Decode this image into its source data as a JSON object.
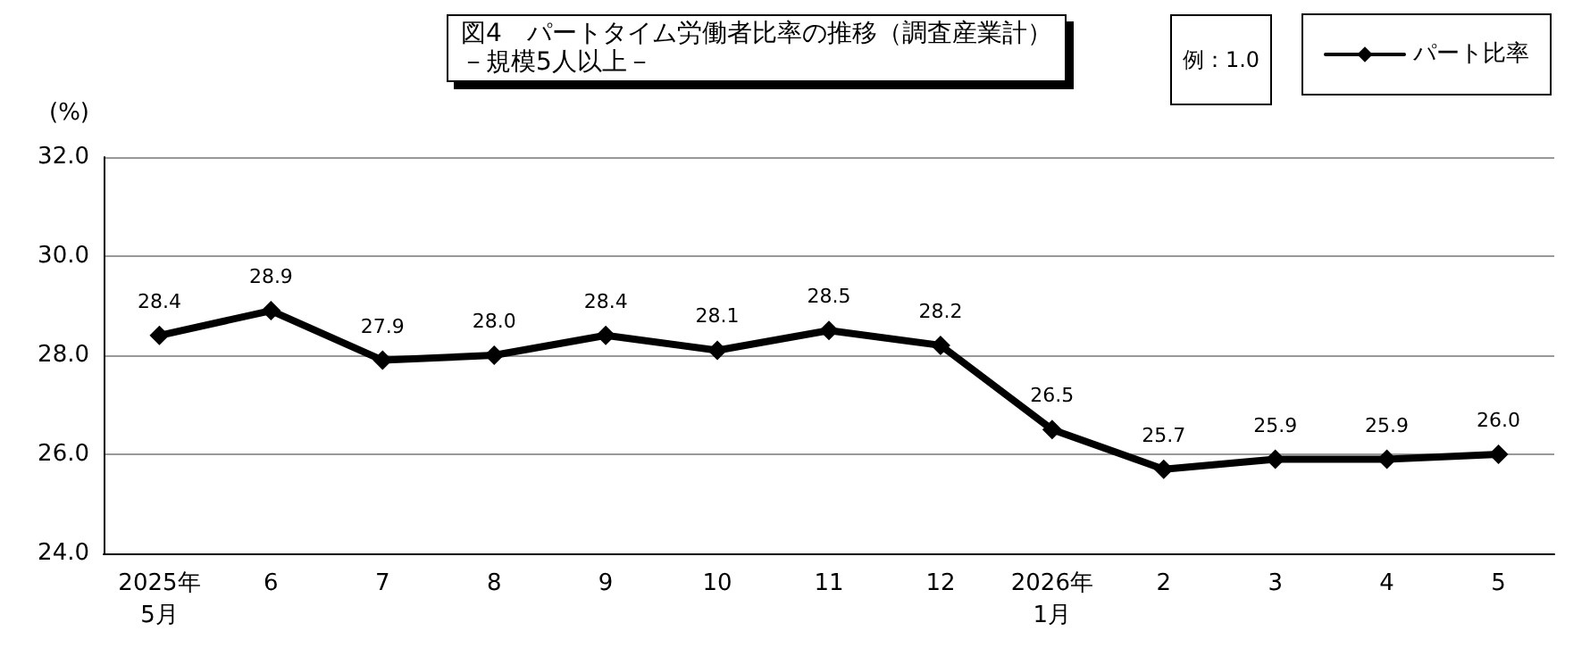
{
  "chart_data": {
    "type": "line",
    "title": "図4　パートタイム労働者比率の推移（調査産業計）",
    "subtitle": "－規模5人以上－",
    "ylabel": "(%)",
    "annotations": [
      "例：1.0"
    ],
    "categories": [
      "2025年\n5月",
      "6",
      "7",
      "8",
      "9",
      "10",
      "11",
      "12",
      "2026年\n1月",
      "2",
      "3",
      "4",
      "5"
    ],
    "series": [
      {
        "name": "パート比率",
        "color": "#000000",
        "values": [
          28.4,
          28.9,
          27.9,
          28.0,
          28.4,
          28.1,
          28.5,
          28.2,
          26.5,
          25.7,
          25.9,
          25.9,
          26.0
        ],
        "value_labels": [
          "28.4",
          "28.9",
          "27.9",
          "28.0",
          "28.4",
          "28.1",
          "28.5",
          "28.2",
          "26.5",
          "25.7",
          "25.9",
          "25.9",
          "26.0"
        ]
      }
    ],
    "ylim": [
      24,
      32
    ],
    "yticks": [
      {
        "value": 24,
        "label": "24.0"
      },
      {
        "value": 26,
        "label": "26.0"
      },
      {
        "value": 28,
        "label": "28.0"
      },
      {
        "value": 30,
        "label": "30.0"
      },
      {
        "value": 32,
        "label": "32.0"
      }
    ],
    "grid": "y",
    "legend": "top right",
    "marker": "diamond",
    "line_style": "solid"
  }
}
